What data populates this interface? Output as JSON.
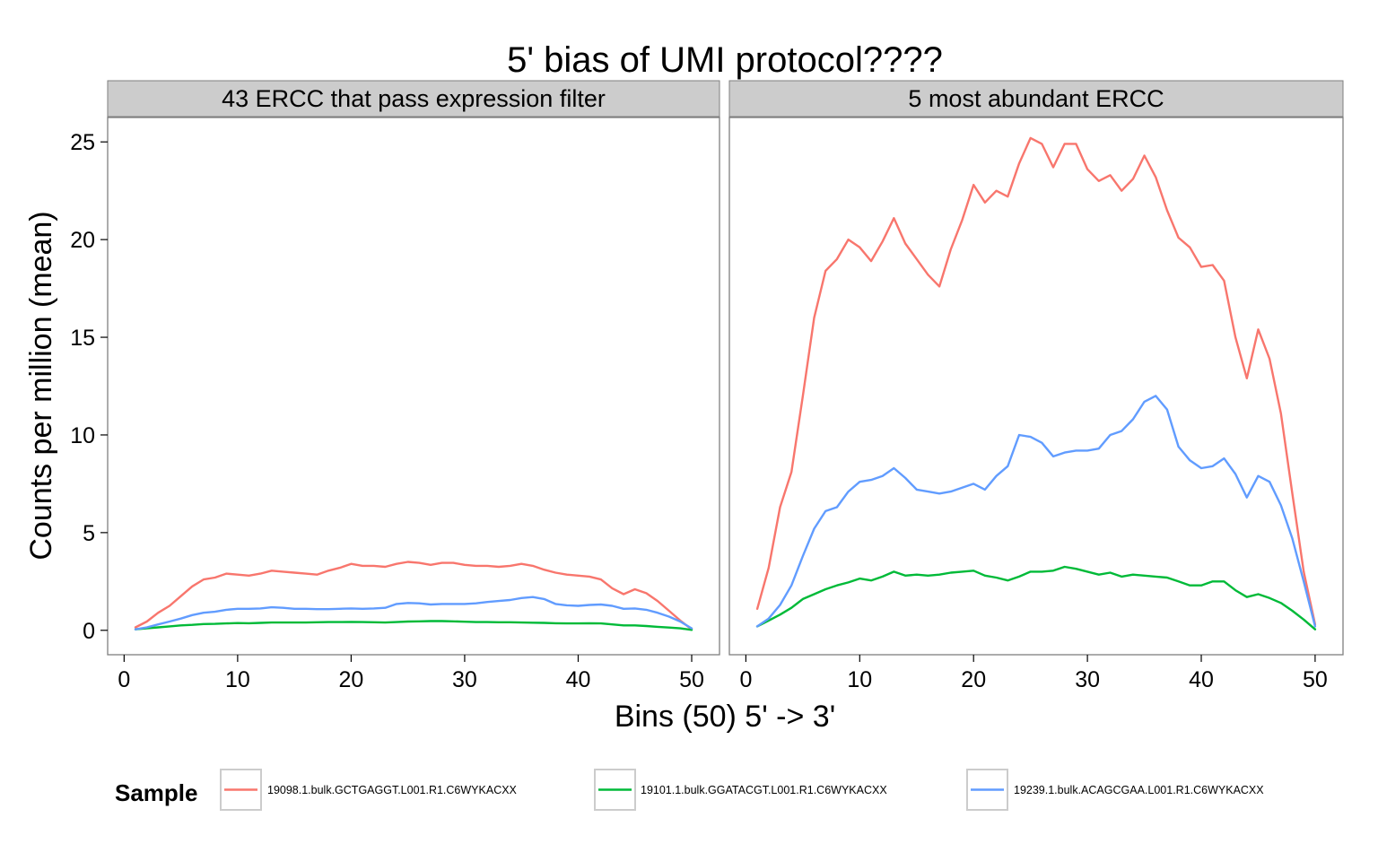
{
  "chart_data": {
    "type": "line",
    "title": "5' bias of UMI protocol????",
    "xlabel": "Bins (50) 5' -> 3'",
    "ylabel": "Counts per million (mean)",
    "xlim": [
      0,
      50
    ],
    "ylim": [
      0,
      25
    ],
    "x_ticks": [
      0,
      10,
      20,
      30,
      40,
      50
    ],
    "y_ticks": [
      0,
      5,
      10,
      15,
      20,
      25
    ],
    "grid": false,
    "legend": {
      "title": "Sample",
      "position": "bottom"
    },
    "panels": [
      {
        "strip_label": "43 ERCC that pass expression filter",
        "series": [
          {
            "name": "19098.1.bulk.GCTGAGGT.L001.R1.C6WYKACXX",
            "color": "#F8766D",
            "values": [
              0.15,
              0.45,
              0.9,
              1.25,
              1.75,
              2.25,
              2.6,
              2.7,
              2.9,
              2.85,
              2.8,
              2.9,
              3.05,
              3.0,
              2.95,
              2.9,
              2.85,
              3.05,
              3.2,
              3.4,
              3.3,
              3.3,
              3.25,
              3.4,
              3.5,
              3.45,
              3.35,
              3.45,
              3.45,
              3.35,
              3.3,
              3.3,
              3.25,
              3.3,
              3.4,
              3.3,
              3.1,
              2.95,
              2.85,
              2.8,
              2.75,
              2.6,
              2.15,
              1.85,
              2.1,
              1.9,
              1.5,
              1.0,
              0.5,
              0.05
            ]
          },
          {
            "name": "19101.1.bulk.GGATACGT.L001.R1.C6WYKACXX",
            "color": "#00BA38",
            "values": [
              0.05,
              0.1,
              0.15,
              0.2,
              0.25,
              0.28,
              0.32,
              0.33,
              0.35,
              0.37,
              0.36,
              0.38,
              0.4,
              0.4,
              0.4,
              0.4,
              0.41,
              0.42,
              0.42,
              0.43,
              0.42,
              0.41,
              0.4,
              0.42,
              0.45,
              0.46,
              0.47,
              0.47,
              0.46,
              0.44,
              0.42,
              0.42,
              0.41,
              0.41,
              0.4,
              0.39,
              0.38,
              0.36,
              0.35,
              0.35,
              0.36,
              0.35,
              0.3,
              0.25,
              0.25,
              0.22,
              0.18,
              0.14,
              0.1,
              0.02
            ]
          },
          {
            "name": "19239.1.bulk.ACAGCGAA.L001.R1.C6WYKACXX",
            "color": "#619CFF",
            "values": [
              0.05,
              0.15,
              0.3,
              0.45,
              0.6,
              0.78,
              0.9,
              0.95,
              1.05,
              1.1,
              1.1,
              1.12,
              1.18,
              1.15,
              1.1,
              1.1,
              1.08,
              1.08,
              1.1,
              1.12,
              1.1,
              1.12,
              1.15,
              1.35,
              1.4,
              1.38,
              1.32,
              1.35,
              1.35,
              1.35,
              1.38,
              1.45,
              1.5,
              1.55,
              1.65,
              1.7,
              1.6,
              1.35,
              1.28,
              1.25,
              1.3,
              1.32,
              1.25,
              1.1,
              1.12,
              1.05,
              0.9,
              0.7,
              0.45,
              0.1
            ]
          }
        ]
      },
      {
        "strip_label": "5 most abundant ERCC",
        "series": [
          {
            "name": "19098.1.bulk.GCTGAGGT.L001.R1.C6WYKACXX",
            "color": "#F8766D",
            "values": [
              1.1,
              3.2,
              6.3,
              8.1,
              12.0,
              16.0,
              18.4,
              19.0,
              20.0,
              19.6,
              18.9,
              19.9,
              21.1,
              19.8,
              19.0,
              18.2,
              17.6,
              19.5,
              21.0,
              22.8,
              21.9,
              22.5,
              22.2,
              23.9,
              25.2,
              24.9,
              23.7,
              24.9,
              24.9,
              23.6,
              23.0,
              23.3,
              22.5,
              23.1,
              24.3,
              23.2,
              21.5,
              20.1,
              19.6,
              18.6,
              18.7,
              17.9,
              15.0,
              12.9,
              15.4,
              13.9,
              11.1,
              7.0,
              3.0,
              0.3
            ]
          },
          {
            "name": "19101.1.bulk.GGATACGT.L001.R1.C6WYKACXX",
            "color": "#00BA38",
            "values": [
              0.2,
              0.5,
              0.8,
              1.15,
              1.6,
              1.85,
              2.1,
              2.3,
              2.45,
              2.65,
              2.55,
              2.75,
              3.0,
              2.8,
              2.85,
              2.8,
              2.85,
              2.95,
              3.0,
              3.05,
              2.8,
              2.7,
              2.55,
              2.75,
              3.0,
              3.0,
              3.05,
              3.25,
              3.15,
              3.0,
              2.85,
              2.95,
              2.75,
              2.85,
              2.8,
              2.75,
              2.7,
              2.5,
              2.3,
              2.3,
              2.5,
              2.5,
              2.05,
              1.7,
              1.85,
              1.65,
              1.4,
              1.0,
              0.55,
              0.05
            ]
          },
          {
            "name": "19239.1.bulk.ACAGCGAA.L001.R1.C6WYKACXX",
            "color": "#619CFF",
            "values": [
              0.2,
              0.6,
              1.3,
              2.3,
              3.8,
              5.2,
              6.1,
              6.3,
              7.1,
              7.6,
              7.7,
              7.9,
              8.3,
              7.8,
              7.2,
              7.1,
              7.0,
              7.1,
              7.3,
              7.5,
              7.2,
              7.9,
              8.4,
              10.0,
              9.9,
              9.6,
              8.9,
              9.1,
              9.2,
              9.2,
              9.3,
              10.0,
              10.2,
              10.8,
              11.7,
              12.0,
              11.3,
              9.4,
              8.7,
              8.3,
              8.4,
              8.8,
              8.0,
              6.8,
              7.9,
              7.6,
              6.4,
              4.7,
              2.5,
              0.2
            ]
          }
        ]
      }
    ]
  }
}
